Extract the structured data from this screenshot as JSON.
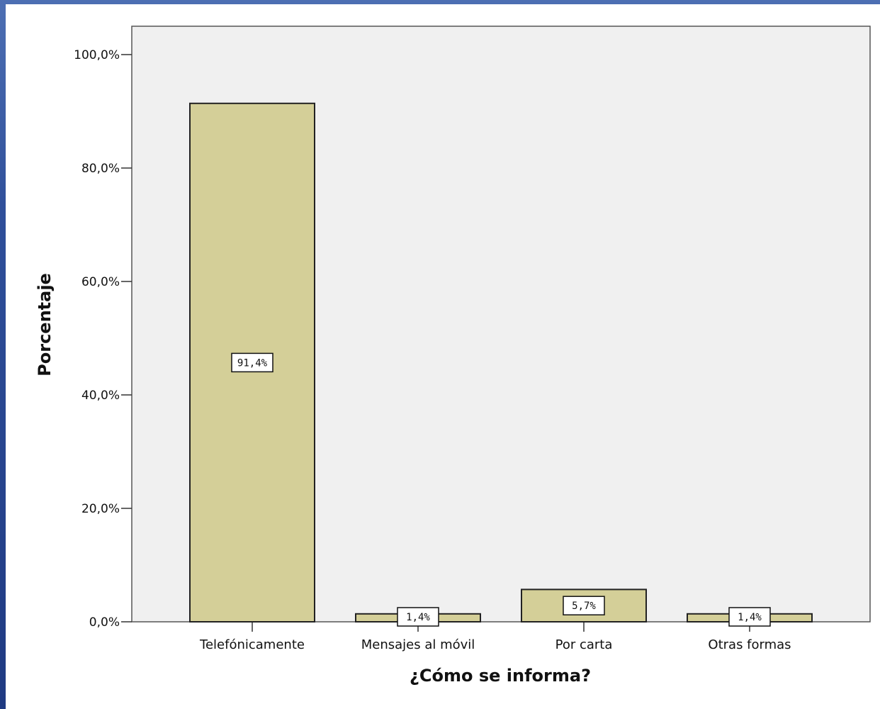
{
  "chart_data": {
    "type": "bar",
    "title": "",
    "xlabel": "¿Cómo se informa?",
    "ylabel": "Porcentaje",
    "categories": [
      "Telefónicamente",
      "Mensajes al móvil",
      "Por carta",
      "Otras formas"
    ],
    "values": [
      91.4,
      1.4,
      5.7,
      1.4
    ],
    "data_labels": [
      "91,4%",
      "1,4%",
      "5,7%",
      "1,4%"
    ],
    "ylim": [
      0,
      105
    ],
    "yticks": [
      0,
      20,
      40,
      60,
      80,
      100
    ],
    "ytick_labels": [
      "0,0%",
      "20,0%",
      "40,0%",
      "60,0%",
      "80,0%",
      "100,0%"
    ],
    "grid": false,
    "legend": "none",
    "colors": {
      "bar_fill": "#d4cf98",
      "bar_stroke": "#222222",
      "plot_bg": "#f0f0f0",
      "axis": "#555555"
    }
  }
}
